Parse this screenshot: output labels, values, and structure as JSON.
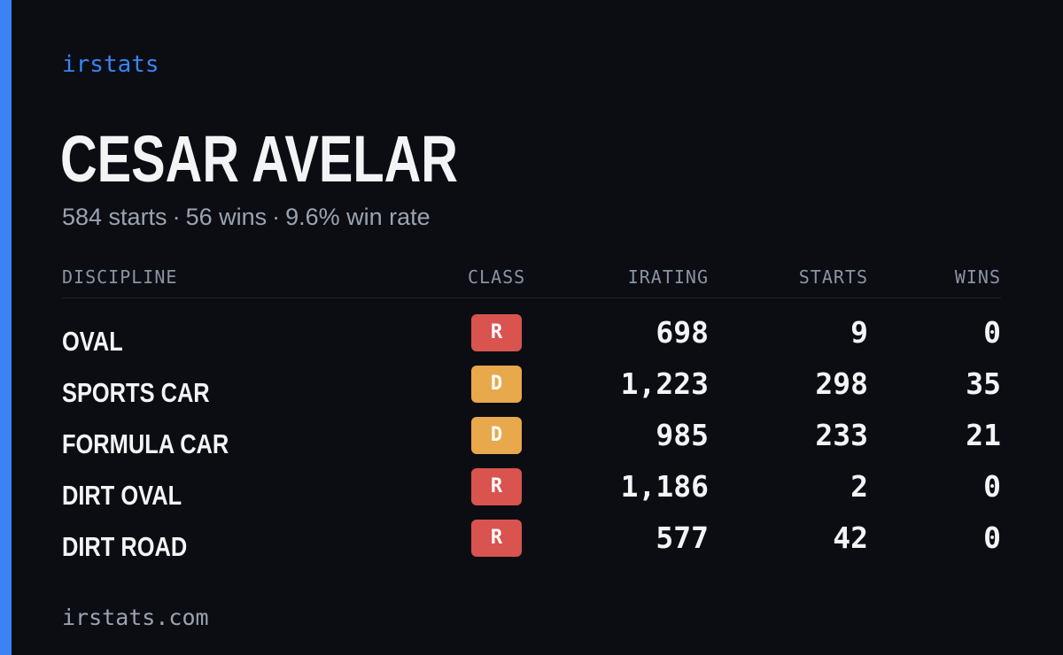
{
  "brand": "irstats",
  "driver": {
    "name": "CESAR AVELAR"
  },
  "summary": {
    "starts": "584 starts",
    "wins": "56 wins",
    "win_rate": "9.6% win rate",
    "separator": "·"
  },
  "colors": {
    "accent": "#3b82f6",
    "background": "#0b0d13",
    "class_R": "#d9534f",
    "class_D": "#e8a84c"
  },
  "table": {
    "headers": {
      "discipline": "DISCIPLINE",
      "class": "CLASS",
      "irating": "IRATING",
      "starts": "STARTS",
      "wins": "WINS"
    },
    "rows": [
      {
        "discipline": "OVAL",
        "class": "R",
        "irating": "698",
        "starts": "9",
        "wins": "0"
      },
      {
        "discipline": "SPORTS CAR",
        "class": "D",
        "irating": "1,223",
        "starts": "298",
        "wins": "35"
      },
      {
        "discipline": "FORMULA CAR",
        "class": "D",
        "irating": "985",
        "starts": "233",
        "wins": "21"
      },
      {
        "discipline": "DIRT OVAL",
        "class": "R",
        "irating": "1,186",
        "starts": "2",
        "wins": "0"
      },
      {
        "discipline": "DIRT ROAD",
        "class": "R",
        "irating": "577",
        "starts": "42",
        "wins": "0"
      }
    ]
  },
  "footer": {
    "url": "irstats.com"
  }
}
